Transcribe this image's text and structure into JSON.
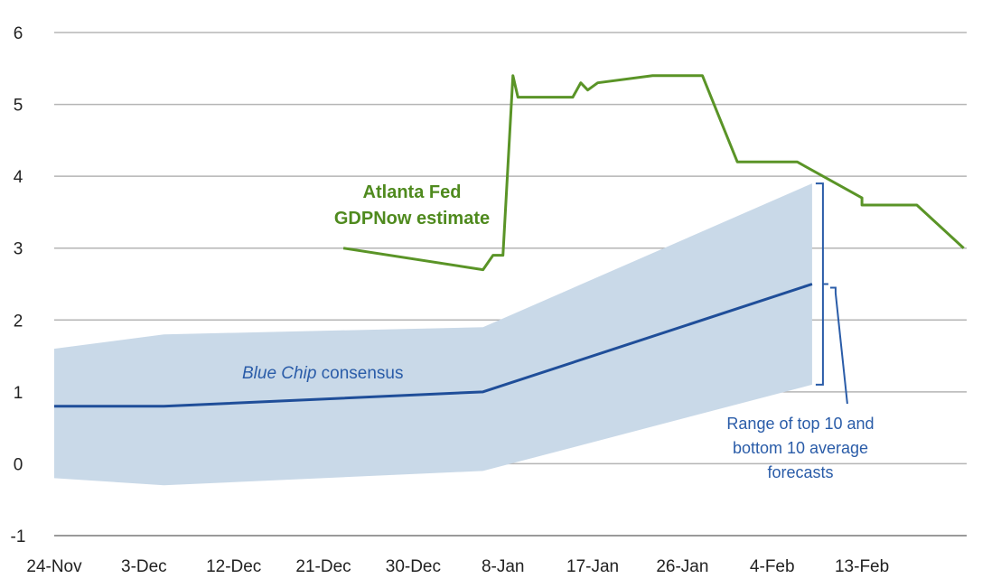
{
  "chart_data": {
    "type": "line",
    "x_labels": [
      "24-Nov",
      "3-Dec",
      "12-Dec",
      "21-Dec",
      "30-Dec",
      "8-Jan",
      "17-Jan",
      "26-Jan",
      "4-Feb",
      "13-Feb"
    ],
    "y_ticks": [
      "6",
      "5",
      "4",
      "3",
      "2",
      "1",
      "0",
      "-1"
    ],
    "ylim": [
      -1,
      6
    ],
    "x_unit": "days since 24-Nov",
    "xlim": [
      0,
      91.5
    ],
    "grid": true,
    "series": [
      {
        "name": "Atlanta Fed GDPNow estimate",
        "color": "#5a9427",
        "x": [
          29,
          43,
          44,
          45,
          46,
          46.5,
          47.5,
          52,
          52.8,
          53.5,
          54.5,
          60,
          65,
          65,
          68.5,
          70,
          74,
          74.5,
          81,
          81,
          86.5,
          91.2
        ],
        "y": [
          3.0,
          2.7,
          2.9,
          2.9,
          5.4,
          5.1,
          5.1,
          5.1,
          5.3,
          5.2,
          5.3,
          5.4,
          5.4,
          5.4,
          4.2,
          4.2,
          4.2,
          4.2,
          3.7,
          3.6,
          3.6,
          3.0
        ]
      },
      {
        "name": "Blue Chip consensus",
        "color": "#1f4e99",
        "x": [
          0,
          11,
          43,
          76
        ],
        "y": [
          0.8,
          0.8,
          1.0,
          2.5
        ]
      }
    ],
    "range_band": {
      "name": "Range of top 10 and bottom 10 average forecasts",
      "color": "#c9d9e8",
      "x": [
        0,
        11,
        43,
        76
      ],
      "upper": [
        1.6,
        1.8,
        1.9,
        3.9
      ],
      "lower": [
        -0.2,
        -0.3,
        -0.1,
        1.1
      ]
    },
    "annotations": {
      "gdpnow_line1": "Atlanta Fed",
      "gdpnow_line2": "GDPNow estimate",
      "bluechip_italic": "Blue Chip",
      "bluechip_rest": " consensus",
      "range_line1": "Range of top 10 and",
      "range_line2": "bottom 10 average",
      "range_line3": "forecasts"
    }
  }
}
